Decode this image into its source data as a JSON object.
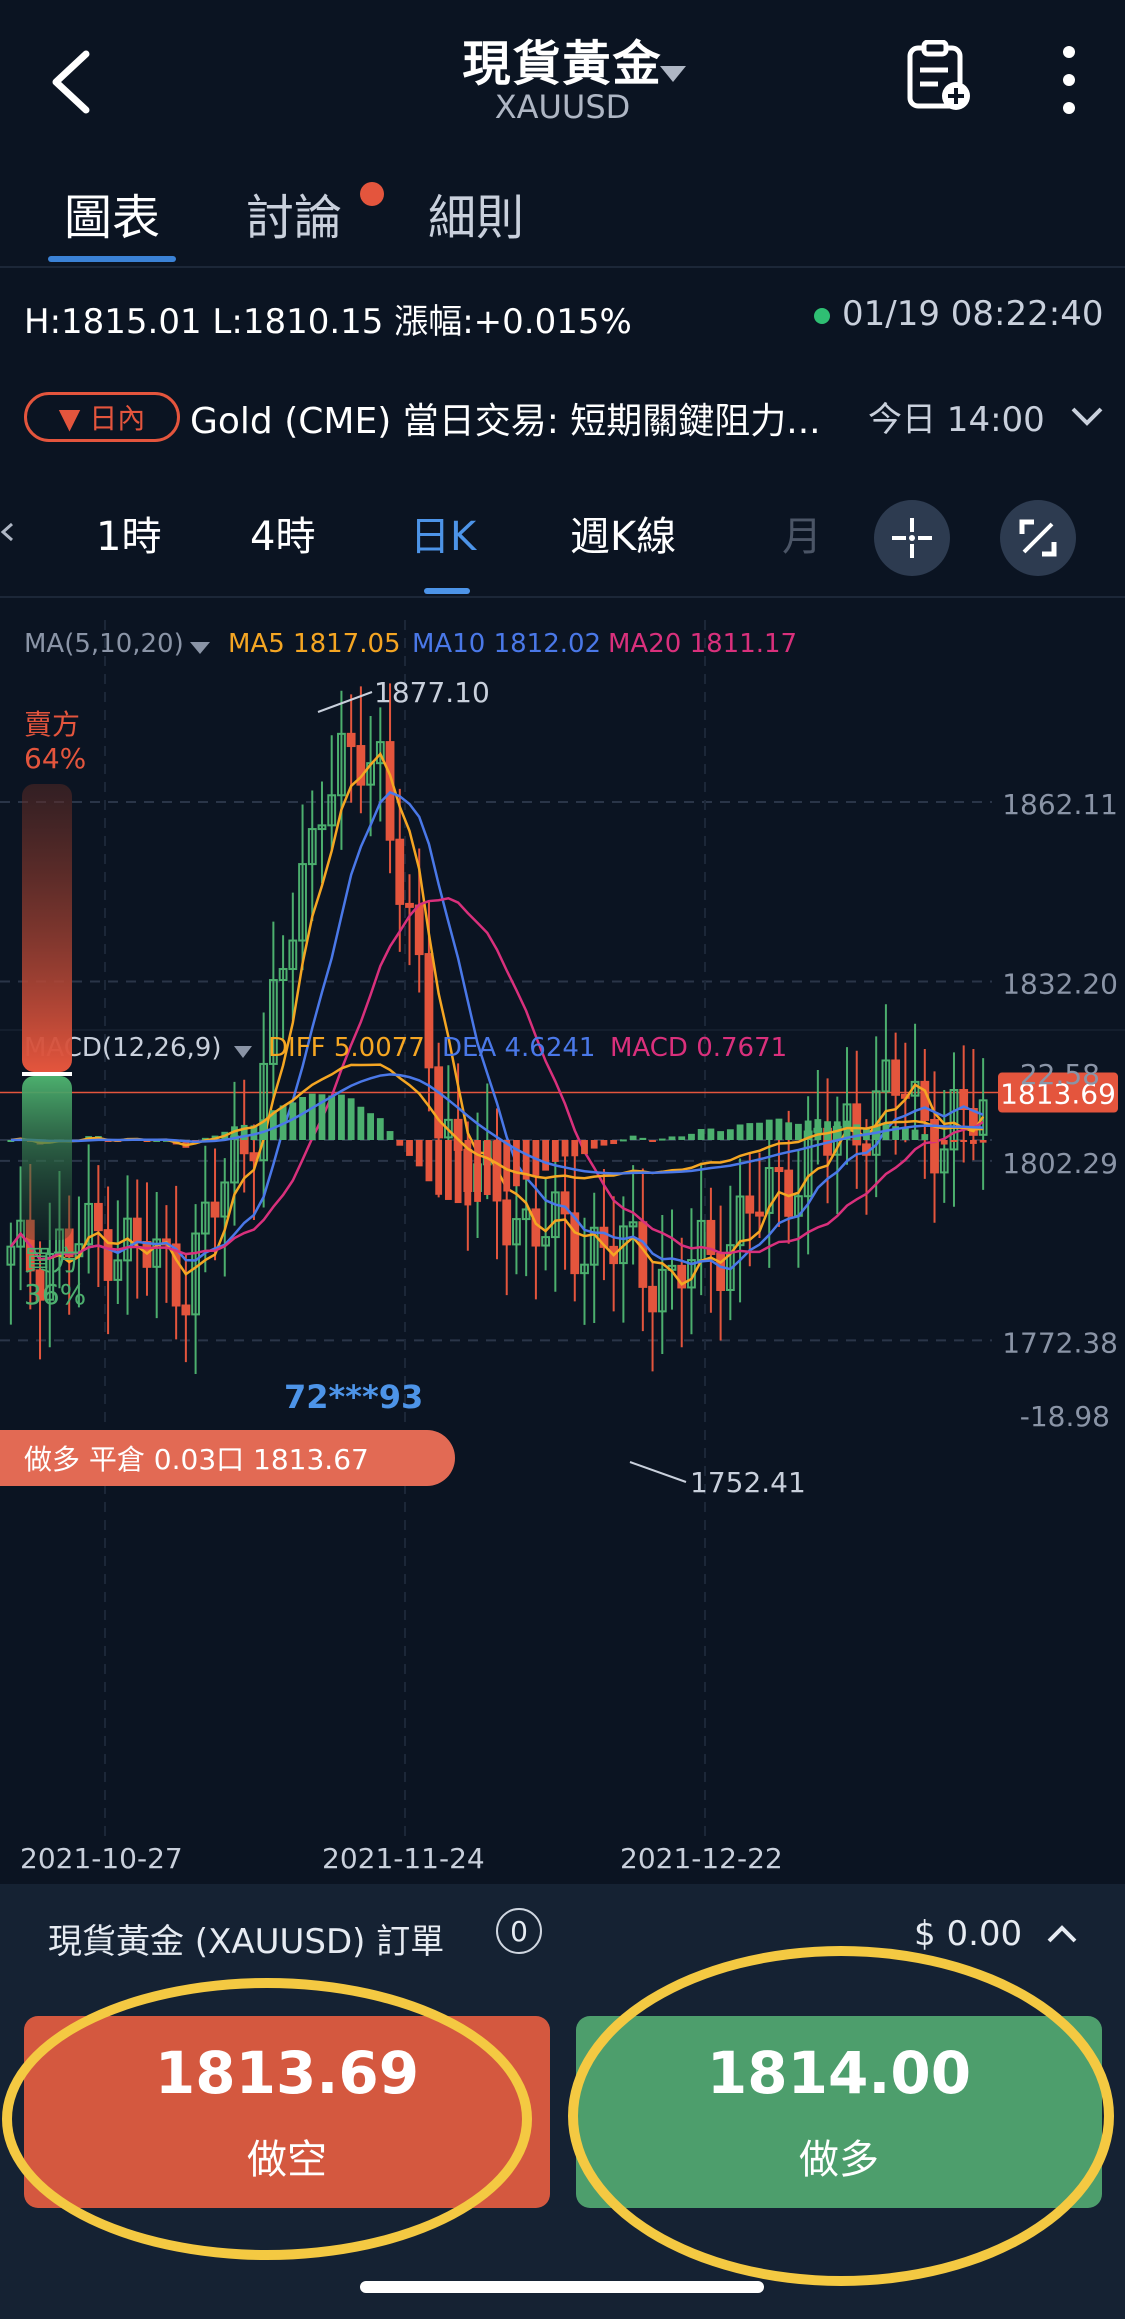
{
  "header": {
    "title": "現貨黃金",
    "subtitle": "XAUUSD"
  },
  "tabs": [
    {
      "label": "圖表"
    },
    {
      "label": "討論"
    },
    {
      "label": "細則"
    }
  ],
  "stats": {
    "line": "H:1815.01 L:1810.15 漲幅:+0.015%",
    "time": "01/19 08:22:40"
  },
  "news": {
    "badge": "▼ 日內",
    "text": "Gold (CME) 當日交易: 短期關鍵阻力...",
    "time": "今日 14:00"
  },
  "periods": [
    "1時",
    "4時",
    "日K",
    "週K線",
    "月"
  ],
  "indicators": {
    "ma_label": "MA(5,10,20)",
    "ma5": "MA5 1817.05",
    "ma10": "MA10 1812.02",
    "ma20": "MA20 1811.17",
    "macd_label": "MACD(12,26,9)",
    "diff": "DIFF 5.0077",
    "dea": "DEA 4.6241",
    "macd": "MACD 0.7671"
  },
  "sentiment": {
    "sell_label": "賣方",
    "sell_pct": "64%",
    "buy_label": "買方",
    "buy_pct": "36%",
    "sell_fraction": 0.64
  },
  "trade": {
    "trader": "72***93",
    "banner": "做多 平倉 0.03口 1813.67"
  },
  "chart_data": {
    "type": "candlestick",
    "price_ticks": [
      "1862.11",
      "1832.20",
      "1802.29",
      "1772.38"
    ],
    "current_price": "1813.69",
    "high_marker": "1877.10",
    "low_marker": "1752.41",
    "macd_ticks": [
      "22.58",
      "-18.98"
    ],
    "dates": [
      "2021-10-27",
      "2021-11-24",
      "2021-12-22"
    ],
    "colors": {
      "up": "#4caf6e",
      "down": "#e4553d",
      "ma5": "#f5a623",
      "ma10": "#4a78e8",
      "ma20": "#d9307c"
    }
  },
  "order": {
    "title": "現貨黃金 (XAUUSD) 訂單",
    "count": "0",
    "amount": "$ 0.00",
    "sell_price": "1813.69",
    "sell_label": "做空",
    "buy_price": "1814.00",
    "buy_label": "做多"
  }
}
